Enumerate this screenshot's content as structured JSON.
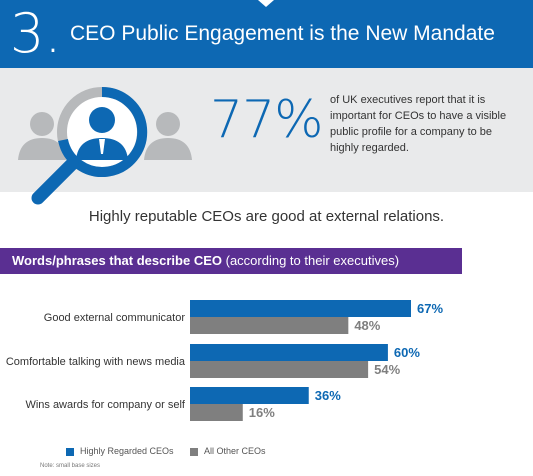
{
  "header": {
    "number": "3.",
    "title": "CEO Public Engagement is the New Mandate"
  },
  "stat": {
    "value": "77%",
    "description": "of UK executives report that it is important for CEOs to have a visible public profile for a company to be highly regarded."
  },
  "subtitle": "Highly reputable CEOs are good at external relations.",
  "section": {
    "title_bold": "Words/phrases that describe CEO",
    "title_normal": "(according to their executives)"
  },
  "colors": {
    "brand_blue": "#0d68b3",
    "gray": "#7f7f7f",
    "purple": "#5a2f92",
    "panel": "#e9eaeb"
  },
  "icons": [
    "magnifier-icon",
    "person-icon"
  ],
  "chart_data": {
    "type": "bar",
    "orientation": "horizontal",
    "categories": [
      "Good external communicator",
      "Comfortable talking with news media",
      "Wins awards for company or self"
    ],
    "series": [
      {
        "name": "Highly Regarded CEOs",
        "values": [
          67,
          60,
          36
        ],
        "labels": [
          "67%",
          "60%",
          "36%"
        ],
        "color": "#0d68b3"
      },
      {
        "name": "All Other CEOs",
        "values": [
          48,
          54,
          16
        ],
        "labels": [
          "48%",
          "54%",
          "16%"
        ],
        "color": "#7f7f7f"
      }
    ],
    "xlim": [
      0,
      67
    ],
    "grid": false,
    "legend": "bottom-left"
  },
  "legend": {
    "series_a": "Highly Regarded CEOs",
    "series_b": "All Other CEOs"
  },
  "note": "Note: small base sizes"
}
